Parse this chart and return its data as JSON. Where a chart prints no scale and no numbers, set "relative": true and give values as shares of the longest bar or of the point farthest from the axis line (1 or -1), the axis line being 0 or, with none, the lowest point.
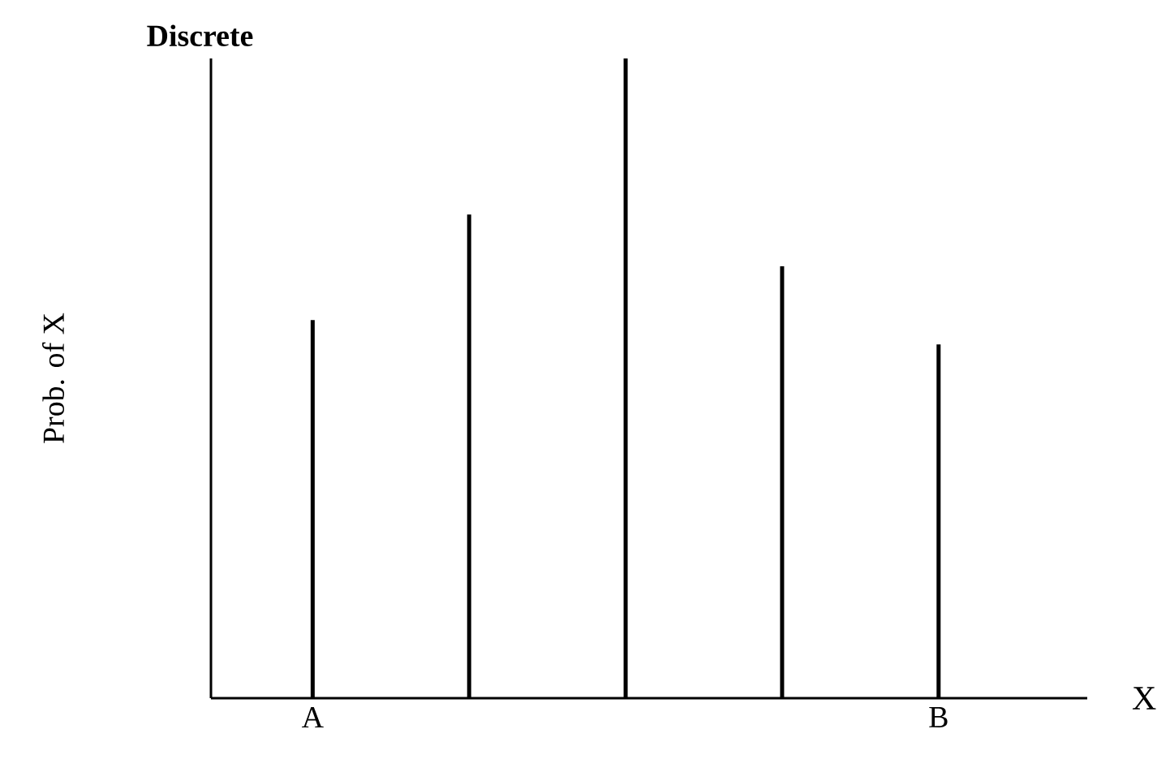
{
  "chart_data": {
    "type": "bar",
    "title": "Discrete",
    "xlabel": "X",
    "ylabel": "Prob. of X",
    "categories": [
      "A",
      null,
      null,
      null,
      "B"
    ],
    "values": [
      0.591,
      0.756,
      1,
      0.675,
      0.553
    ],
    "color": "#000000",
    "relative": true
  }
}
